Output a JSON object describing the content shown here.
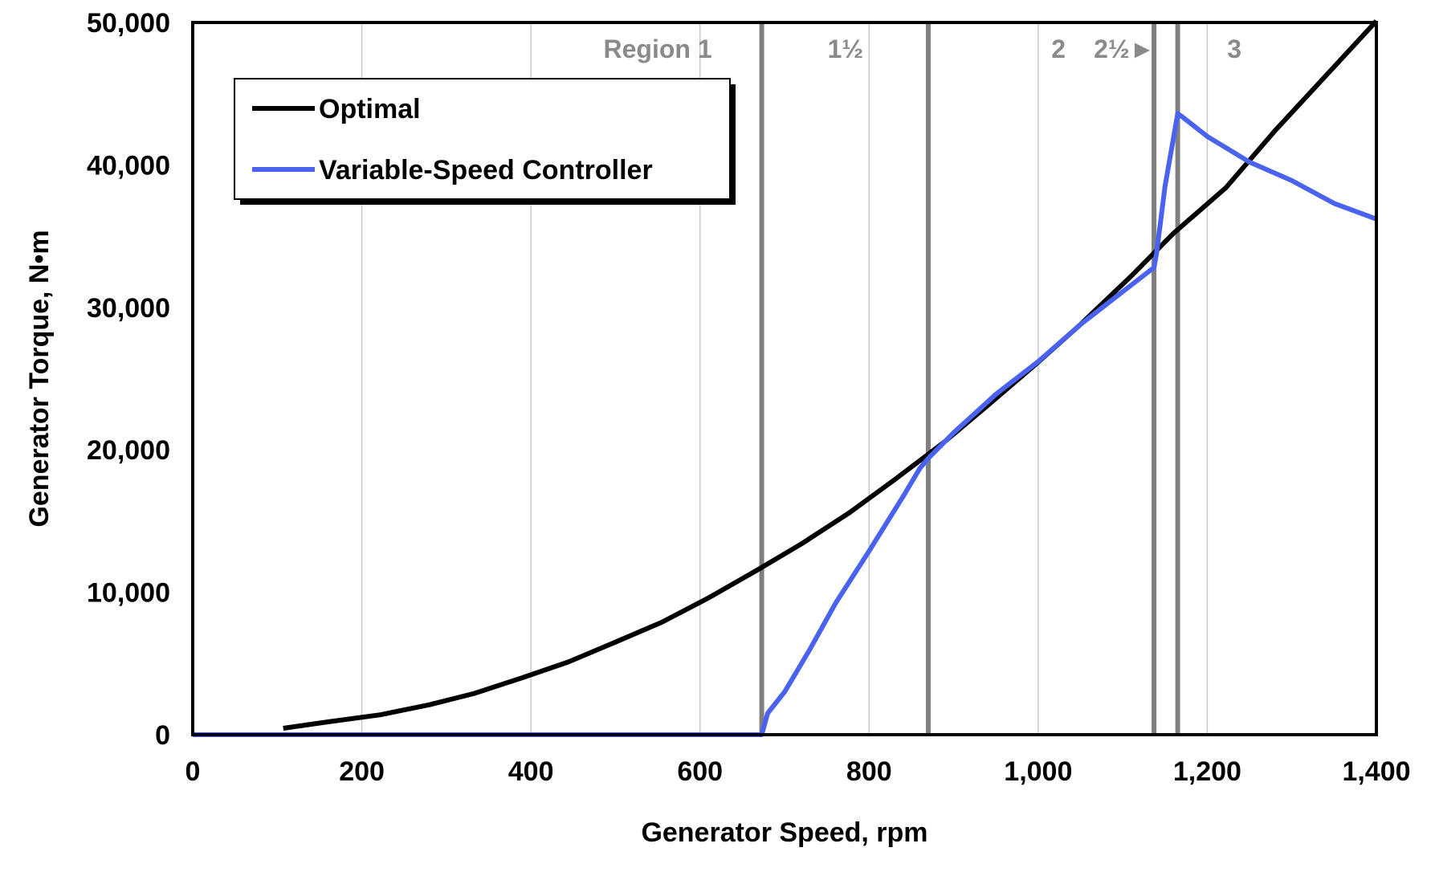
{
  "chart_data": {
    "type": "line",
    "xlabel": "Generator Speed, rpm",
    "ylabel": "Generator Torque, N•m",
    "xlim": [
      0,
      1400
    ],
    "ylim": [
      0,
      50000
    ],
    "x_ticks": [
      0,
      200,
      400,
      600,
      800,
      1000,
      1200,
      1400
    ],
    "x_tick_labels": [
      "0",
      "200",
      "400",
      "600",
      "800",
      "1,000",
      "1,200",
      "1,400"
    ],
    "y_ticks": [
      0,
      10000,
      20000,
      30000,
      40000,
      50000
    ],
    "y_tick_labels": [
      "0",
      "10,000",
      "20,000",
      "30,000",
      "40,000",
      "50,000"
    ],
    "grid": "vertical",
    "legend_position": "top-left",
    "region_boundaries": [
      {
        "x": 673,
        "color": "#808080"
      },
      {
        "x": 870,
        "color": "#808080"
      },
      {
        "x": 1137,
        "color": "#808080"
      },
      {
        "x": 1165,
        "color": "#808080"
      }
    ],
    "region_labels": [
      {
        "text": "Region 1",
        "x": 550
      },
      {
        "text": "1½",
        "x": 772
      },
      {
        "text": "2",
        "x": 1024
      },
      {
        "text": "2½►",
        "x": 1102
      },
      {
        "text": "3",
        "x": 1232
      }
    ],
    "series": [
      {
        "name": "Optimal",
        "color": "#000000",
        "x": [
          107,
          160,
          222,
          280,
          333,
          390,
          444,
          500,
          555,
          610,
          666,
          720,
          777,
          830,
          888,
          940,
          999,
          1050,
          1110,
          1160,
          1222,
          1280,
          1333,
          1400
        ],
        "y": [
          450,
          900,
          1400,
          2100,
          2900,
          4000,
          5100,
          6500,
          7900,
          9600,
          11500,
          13400,
          15600,
          17900,
          20500,
          23100,
          26100,
          28800,
          32200,
          35200,
          38400,
          42400,
          45800,
          50100
        ]
      },
      {
        "name": "Variable-Speed Controller",
        "color": "#4a62f0",
        "x": [
          0,
          670,
          673,
          680,
          700,
          730,
          760,
          800,
          840,
          860,
          870,
          900,
          950,
          1000,
          1050,
          1100,
          1137,
          1140,
          1150,
          1165,
          1170,
          1200,
          1250,
          1300,
          1350,
          1400
        ],
        "y": [
          0,
          0,
          0,
          1500,
          3000,
          6000,
          9200,
          12900,
          16700,
          18700,
          19400,
          21200,
          23900,
          26200,
          28800,
          31100,
          32800,
          33800,
          38500,
          43600,
          43400,
          42000,
          40200,
          38900,
          37300,
          36200
        ]
      }
    ]
  }
}
